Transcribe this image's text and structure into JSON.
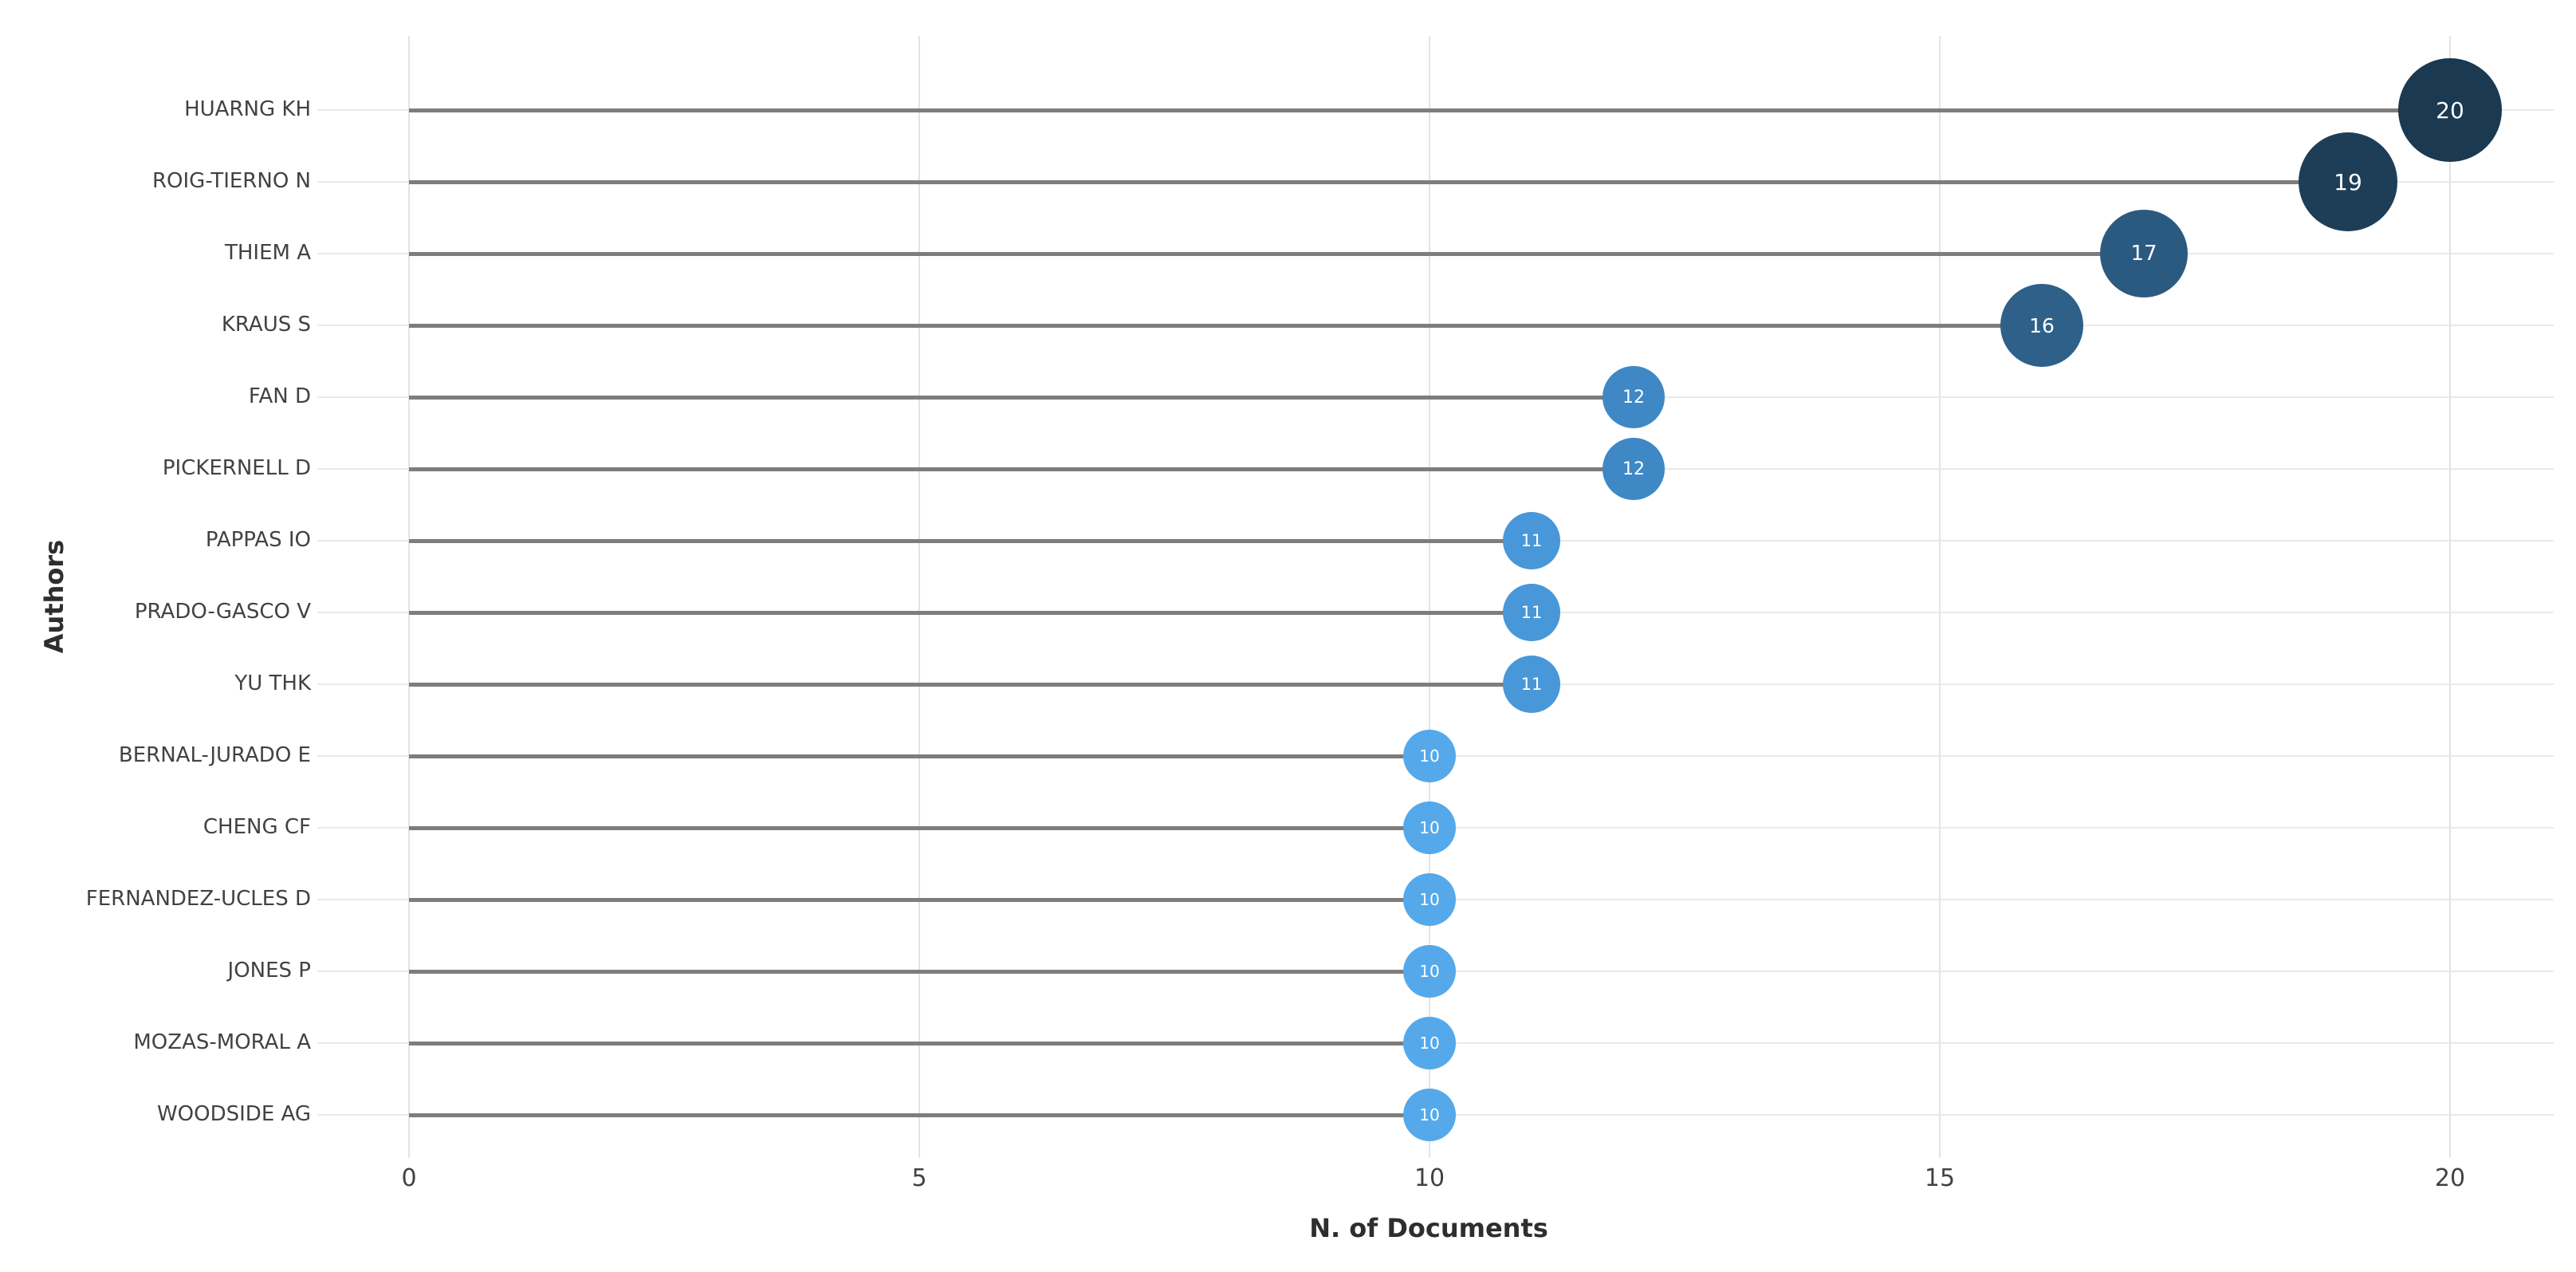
{
  "chart_data": {
    "type": "scatter",
    "subtype": "lollipop-bubble",
    "orientation": "horizontal",
    "title": "",
    "xlabel": "N. of Documents",
    "ylabel": "Authors",
    "categories": [
      "HUARNG KH",
      "ROIG-TIERNO N",
      "THIEM A",
      "KRAUS S",
      "FAN D",
      "PICKERNELL D",
      "PAPPAS IO",
      "PRADO-GASCO V",
      "YU THK",
      "BERNAL-JURADO E",
      "CHENG CF",
      "FERNANDEZ-UCLES D",
      "JONES P",
      "MOZAS-MORAL A",
      "WOODSIDE AG"
    ],
    "values": [
      20,
      19,
      17,
      16,
      12,
      12,
      11,
      11,
      11,
      10,
      10,
      10,
      10,
      10,
      10
    ],
    "x_ticks": [
      0,
      5,
      10,
      15,
      20
    ],
    "xlim": [
      0,
      21
    ],
    "grid": true,
    "legend": false,
    "background_color": "#ffffff",
    "gridline_color": "#e3e3e3",
    "row_gridline_color": "#e9e9e9",
    "stem_color": "#7d7d7d",
    "tick_label_color": "#424242",
    "axis_title_color": "#2e2e2e",
    "bubble_text_color": "#ffffff",
    "bubble_colors_by_value": {
      "20": "#1b3950",
      "19": "#1e3e58",
      "17": "#2b5a81",
      "16": "#2e6089",
      "12": "#3e88c5",
      "11": "#4897d8",
      "10": "#55a9ea"
    }
  }
}
